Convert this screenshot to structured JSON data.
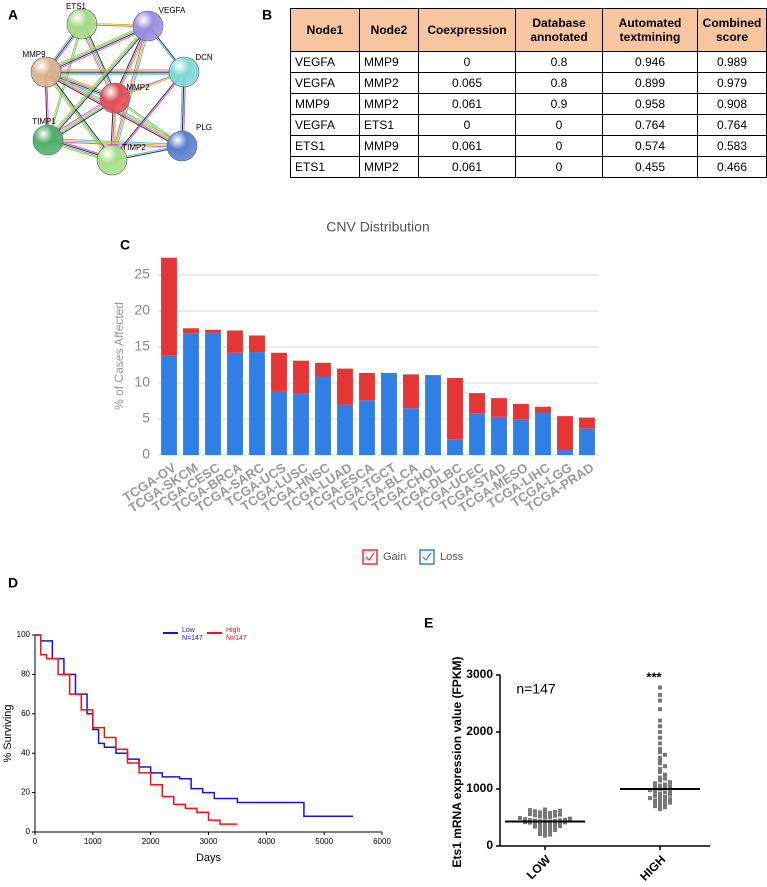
{
  "panel_labels": [
    "A",
    "B",
    "C",
    "D",
    "E"
  ],
  "network": {
    "nodes": [
      {
        "label": "ETS1",
        "color": "#a9d98a"
      },
      {
        "label": "VEGFA",
        "color": "#9b8fe0"
      },
      {
        "label": "MMP9",
        "color": "#d9b48f"
      },
      {
        "label": "DCN",
        "color": "#7fd8d8"
      },
      {
        "label": "MMP2",
        "color": "#e0505a"
      },
      {
        "label": "TIMP1",
        "color": "#4fae6a"
      },
      {
        "label": "PLG",
        "color": "#5a7fcf"
      },
      {
        "label": "TIMP2",
        "color": "#a8e08a"
      }
    ]
  },
  "table": {
    "header": [
      "Node1",
      "Node2",
      "Coexpression",
      "Database annotated",
      "Automated textmining",
      "Combined score"
    ],
    "rows": [
      [
        "VEGFA",
        "MMP9",
        0,
        0.8,
        0.946,
        0.989
      ],
      [
        "VEGFA",
        "MMP2",
        0.065,
        0.8,
        0.899,
        0.979
      ],
      [
        "MMP9",
        "MMP2",
        0.061,
        0.9,
        0.958,
        0.908
      ],
      [
        "VEGFA",
        "ETS1",
        0,
        0,
        0.764,
        0.764
      ],
      [
        "ETS1",
        "MMP9",
        0.061,
        0,
        0.574,
        0.583
      ],
      [
        "ETS1",
        "MMP2",
        0.061,
        0,
        0.455,
        0.466
      ]
    ]
  },
  "chart_data": [
    {
      "type": "bar",
      "stacked": true,
      "title": "CNV Distribution",
      "y_label": "% of Cases Affected",
      "categories": [
        "TCGA-OV",
        "TCGA-SKCM",
        "TCGA-CESC",
        "TCGA-BRCA",
        "TCGA-SARC",
        "TCGA-UCS",
        "TCGA-LUSC",
        "TCGA-HNSC",
        "TCGA-LUAD",
        "TCGA-ESCA",
        "TCGA-TGCT",
        "TCGA-BLCA",
        "TCGA-CHOL",
        "TCGA-DLBC",
        "TCGA-UCEC",
        "TCGA-STAD",
        "TCGA-MESO",
        "TCGA-LIHC",
        "TCGA-LGG",
        "TCGA-PRAD"
      ],
      "series": [
        {
          "name": "Loss",
          "color": "#2f7fe6",
          "values": [
            13.8,
            16.9,
            17.0,
            14.2,
            14.3,
            8.9,
            8.6,
            10.9,
            7.0,
            7.6,
            11.4,
            6.5,
            11.1,
            2.2,
            5.8,
            5.3,
            4.9,
            5.9,
            0.7,
            3.7
          ]
        },
        {
          "name": "Gain",
          "color": "#e53535",
          "values": [
            13.6,
            0.7,
            0.4,
            3.1,
            2.3,
            5.3,
            4.5,
            1.9,
            5.0,
            3.8,
            0,
            4.7,
            0,
            8.5,
            2.8,
            2.6,
            2.2,
            0.8,
            4.7,
            1.5
          ]
        }
      ],
      "ylim": [
        0,
        27.5
      ],
      "yticks": [
        0,
        5,
        10,
        15,
        20,
        25
      ],
      "grid": true,
      "legend": "bottom"
    },
    {
      "type": "line",
      "step": true,
      "x_label": "Days",
      "y_label": "% Surviving",
      "series": [
        {
          "name": "Low",
          "n_label": "N=147",
          "color": "#1515e0",
          "x": [
            0,
            100,
            300,
            500,
            700,
            900,
            1000,
            1100,
            1200,
            1400,
            1600,
            1800,
            2000,
            2200,
            2500,
            2700,
            2900,
            3100,
            3500,
            4600,
            4650,
            5500
          ],
          "values": [
            100,
            97,
            88,
            80,
            70,
            60,
            52,
            45,
            43,
            40,
            37,
            33,
            30,
            28,
            27,
            22,
            20,
            17,
            15,
            15,
            8,
            8
          ]
        },
        {
          "name": "High",
          "n_label": "N=147",
          "color": "#f01515",
          "x": [
            0,
            100,
            200,
            400,
            600,
            800,
            1000,
            1200,
            1400,
            1600,
            1800,
            2000,
            2200,
            2400,
            2600,
            2800,
            3000,
            3200,
            3500
          ],
          "values": [
            100,
            90,
            88,
            80,
            70,
            62,
            53,
            48,
            42,
            35,
            30,
            24,
            18,
            14,
            12,
            10,
            6,
            4,
            4
          ]
        }
      ],
      "xlim": [
        0,
        6000
      ],
      "xticks": [
        0,
        1000,
        2000,
        3000,
        4000,
        5000,
        6000
      ],
      "ylim": [
        0,
        100
      ],
      "yticks": [
        0,
        20,
        40,
        60,
        80,
        100
      ],
      "legend": "top-center"
    },
    {
      "type": "scatter",
      "y_label": "Ets1 mRNA expression value (FPKM)",
      "categories": [
        "LOW",
        "HIGH"
      ],
      "color": "#777777",
      "values": [
        [
          180,
          200,
          210,
          240,
          250,
          260,
          280,
          300,
          310,
          320,
          330,
          340,
          350,
          360,
          370,
          380,
          390,
          400,
          405,
          410,
          415,
          420,
          425,
          430,
          435,
          440,
          445,
          450,
          455,
          460,
          470,
          480,
          490,
          500,
          510,
          520,
          530,
          540,
          550,
          560,
          570,
          580,
          590,
          600,
          610,
          620,
          630,
          640
        ],
        [
          650,
          680,
          700,
          710,
          720,
          740,
          760,
          780,
          790,
          800,
          820,
          840,
          850,
          860,
          880,
          900,
          920,
          940,
          950,
          960,
          980,
          1000,
          1020,
          1040,
          1050,
          1060,
          1080,
          1100,
          1120,
          1150,
          1180,
          1200,
          1250,
          1300,
          1350,
          1400,
          1450,
          1500,
          1550,
          1600,
          1650,
          1700,
          1800,
          1900,
          2000,
          2100,
          2200,
          2400,
          2550,
          2650,
          2780
        ]
      ],
      "means": [
        430,
        1000
      ],
      "annotations": [
        "n=147",
        "***"
      ],
      "ylim": [
        0,
        3000
      ],
      "yticks": [
        0,
        1000,
        2000,
        3000
      ]
    }
  ]
}
